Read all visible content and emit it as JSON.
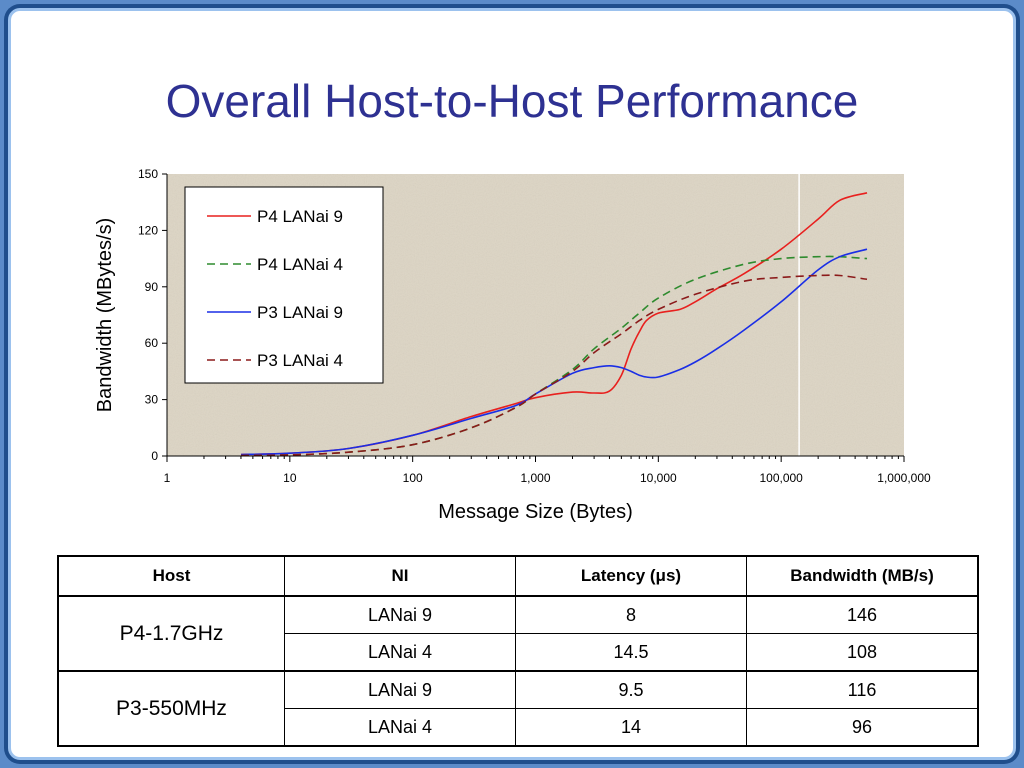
{
  "slide": {
    "title": "Overall Host-to-Host Performance"
  },
  "colors": {
    "title": "#2e3192",
    "plot_background": "#ddd5c4",
    "frame": "#1f4e8c",
    "frame_border": "#9cc2ee"
  },
  "chart_data": {
    "type": "line",
    "xlabel": "Message Size (Bytes)",
    "ylabel": "Bandwidth (MBytes/s)",
    "xscale": "log",
    "xlim": [
      1,
      1000000
    ],
    "ylim": [
      0,
      150
    ],
    "xticks": [
      {
        "value": 1,
        "label": "1"
      },
      {
        "value": 10,
        "label": "10"
      },
      {
        "value": 100,
        "label": "100"
      },
      {
        "value": 1000,
        "label": "1,000"
      },
      {
        "value": 10000,
        "label": "10,000"
      },
      {
        "value": 100000,
        "label": "100,000"
      },
      {
        "value": 1000000,
        "label": "1,000,000"
      }
    ],
    "yticks": [
      {
        "value": 0,
        "label": "0"
      },
      {
        "value": 30,
        "label": "30"
      },
      {
        "value": 60,
        "label": "60"
      },
      {
        "value": 90,
        "label": "90"
      },
      {
        "value": 120,
        "label": "120"
      },
      {
        "value": 150,
        "label": "150"
      }
    ],
    "grid": false,
    "legend_position": "top-left",
    "reference_line_x": 140000,
    "series": [
      {
        "name": "P4 LANai 9",
        "color": "#e8201e",
        "dash": false,
        "x": [
          4,
          10,
          30,
          100,
          300,
          700,
          1000,
          2000,
          3000,
          4000,
          5000,
          6000,
          7000,
          8000,
          10000,
          15000,
          20000,
          30000,
          50000,
          100000,
          200000,
          300000,
          500000
        ],
        "y": [
          0.8,
          1.5,
          4,
          11,
          21,
          28,
          31,
          34,
          33.5,
          34.5,
          43,
          57,
          66,
          72,
          76,
          78,
          82,
          89,
          97,
          110,
          126,
          136,
          140
        ]
      },
      {
        "name": "P4 LANai 4",
        "color": "#2e8b2e",
        "dash": true,
        "x": [
          4,
          10,
          30,
          100,
          300,
          700,
          1000,
          2000,
          3000,
          5000,
          7000,
          10000,
          20000,
          50000,
          100000,
          200000,
          300000,
          500000
        ],
        "y": [
          0.3,
          0.6,
          2,
          6,
          15,
          26,
          33,
          46,
          57,
          68,
          76,
          84,
          94,
          102,
          105,
          106,
          106,
          105
        ]
      },
      {
        "name": "P3 LANai 9",
        "color": "#1a2ee6",
        "dash": false,
        "x": [
          4,
          10,
          30,
          100,
          300,
          700,
          1000,
          2000,
          3000,
          4000,
          5000,
          6000,
          7000,
          8000,
          10000,
          15000,
          20000,
          30000,
          50000,
          100000,
          200000,
          300000,
          500000
        ],
        "y": [
          0.8,
          1.5,
          4,
          11,
          20,
          27,
          33,
          44,
          47,
          48,
          47,
          45,
          43,
          42,
          42,
          46,
          50,
          57,
          67,
          82,
          99,
          106,
          110
        ]
      },
      {
        "name": "P3 LANai 4",
        "color": "#8b1a1a",
        "dash": true,
        "x": [
          4,
          10,
          30,
          100,
          300,
          700,
          1000,
          2000,
          3000,
          5000,
          7000,
          10000,
          20000,
          50000,
          100000,
          200000,
          300000,
          500000
        ],
        "y": [
          0.3,
          0.6,
          2,
          6,
          15,
          26,
          33,
          45,
          55,
          65,
          72,
          78,
          86,
          93,
          95,
          96,
          96,
          94
        ]
      }
    ]
  },
  "table": {
    "headers": [
      "Host",
      "NI",
      "Latency (μs)",
      "Bandwidth (MB/s)"
    ],
    "groups": [
      {
        "host": "P4-1.7GHz",
        "rows": [
          {
            "ni": "LANai 9",
            "latency": "8",
            "bandwidth": "146"
          },
          {
            "ni": "LANai 4",
            "latency": "14.5",
            "bandwidth": "108"
          }
        ]
      },
      {
        "host": "P3-550MHz",
        "rows": [
          {
            "ni": "LANai 9",
            "latency": "9.5",
            "bandwidth": "116"
          },
          {
            "ni": "LANai 4",
            "latency": "14",
            "bandwidth": "96"
          }
        ]
      }
    ]
  }
}
